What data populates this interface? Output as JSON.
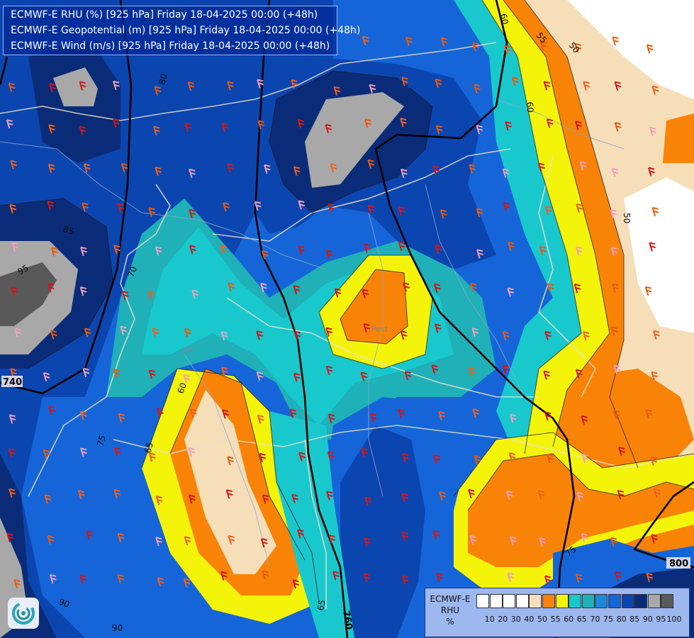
{
  "header": {
    "lines": [
      "ECMWF-E RHU (%) [925 hPa] Friday 18-04-2025 00:00 (+48h)",
      "ECMWF-E Geopotential (m) [925 hPa] Friday 18-04-2025 00:00 (+48h)",
      "ECMWF-E Wind (m/s) [925 hPa] Friday 18-04-2025 00:00 (+48h)"
    ]
  },
  "legend": {
    "model": "ECMWF-E",
    "variable": "RHU",
    "unit": "%",
    "ticks": [
      "10",
      "20",
      "30",
      "40",
      "50",
      "55",
      "60",
      "65",
      "70",
      "75",
      "80",
      "85",
      "90",
      "95",
      "100"
    ],
    "colors": [
      "#ffffff",
      "#ffffff",
      "#ffffff",
      "#ffffff",
      "#f6deb8",
      "#f98307",
      "#f4f40a",
      "#19c8cd",
      "#1fb0b8",
      "#1c88d8",
      "#1565d8",
      "#0b45b0",
      "#0a2c78",
      "#a8a8a8",
      "#595959"
    ]
  },
  "contour_labels": {
    "rhu": [
      "80",
      "85",
      "95",
      "70",
      "60",
      "65",
      "75",
      "90",
      "90",
      "65",
      "50",
      "55",
      "50",
      "60",
      "75",
      "60"
    ],
    "geopotential": [
      "740",
      "760",
      "800"
    ]
  },
  "place_labels": [
    "Pest",
    "Vas"
  ],
  "icons": {
    "logo": "ecmwf-swirl-logo",
    "wind_barb": "wind-barb-icon"
  }
}
